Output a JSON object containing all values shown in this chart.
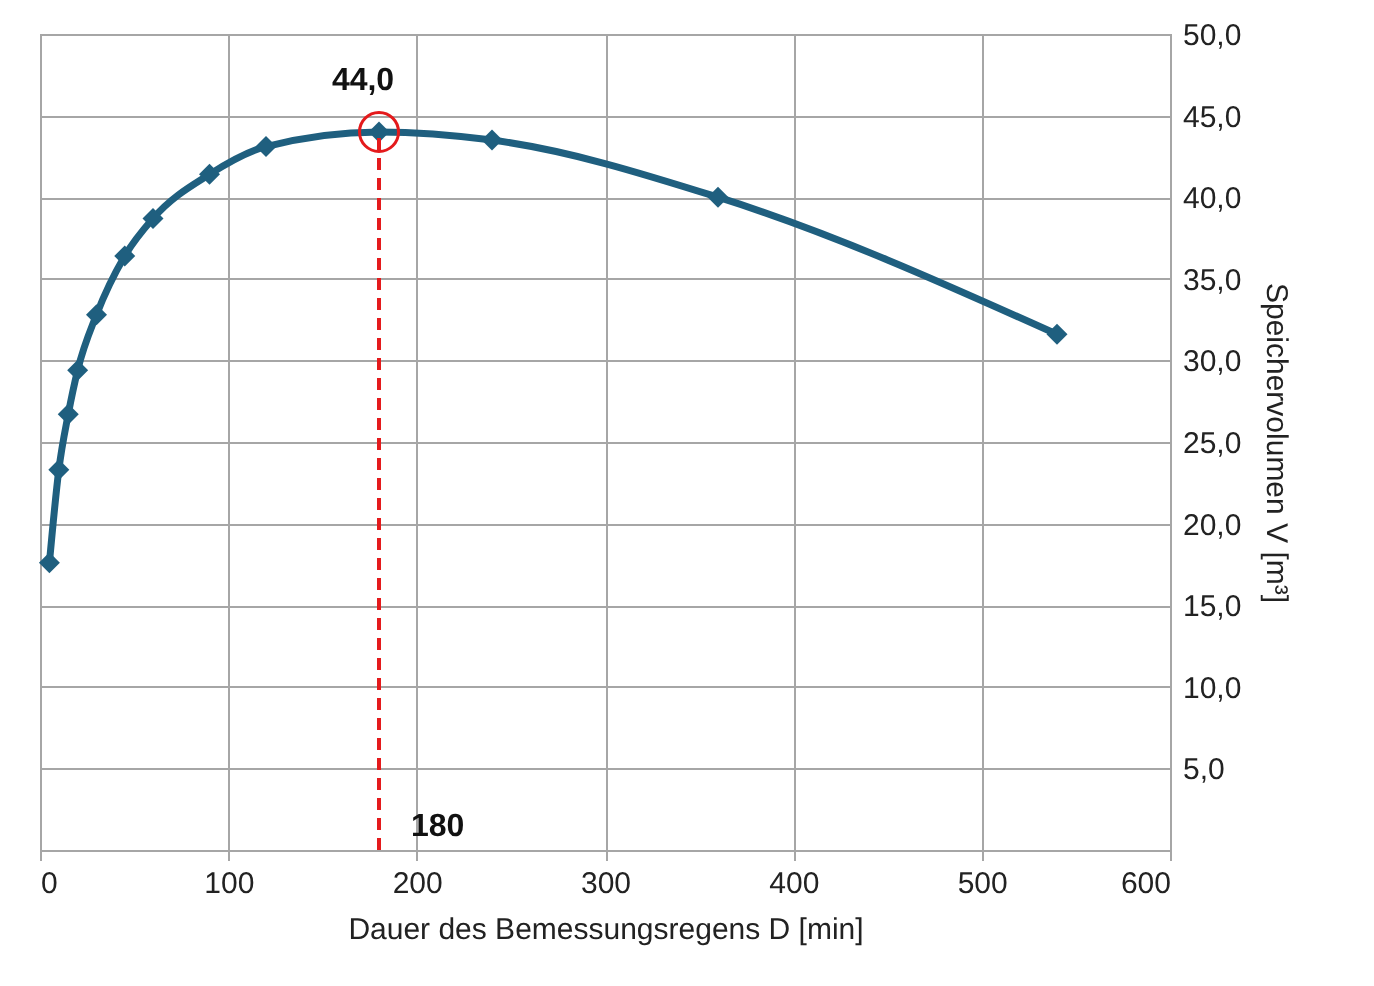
{
  "chart_data": {
    "type": "line",
    "xlabel": "Dauer des Bemessungsregens  D [min]",
    "ylabel": "Speichervolumen V [m³]",
    "x": [
      5,
      10,
      15,
      20,
      30,
      45,
      60,
      90,
      120,
      180,
      240,
      360,
      540
    ],
    "series": [
      {
        "color": "#1f5f7f",
        "values": [
          17.6,
          23.3,
          26.7,
          29.4,
          32.8,
          36.4,
          38.7,
          41.4,
          43.1,
          44.0,
          43.5,
          40.0,
          31.6
        ]
      }
    ],
    "xlim": [
      0,
      600
    ],
    "xticks": [
      0,
      100,
      200,
      300,
      400,
      500,
      600
    ],
    "ylim": [
      0,
      50
    ],
    "yticks": [
      {
        "value": 0,
        "label": null
      },
      {
        "value": 5,
        "label": "5,0"
      },
      {
        "value": 10,
        "label": "10,0"
      },
      {
        "value": 15,
        "label": "15,0"
      },
      {
        "value": 20,
        "label": "20,0"
      },
      {
        "value": 25,
        "label": "25,0"
      },
      {
        "value": 30,
        "label": "30,0"
      },
      {
        "value": 35,
        "label": "35,0"
      },
      {
        "value": 40,
        "label": "40,0"
      },
      {
        "value": 45,
        "label": "45,0"
      },
      {
        "value": 50,
        "label": "50,0"
      }
    ],
    "grid": true,
    "marker": "diamond",
    "line_style": "solid",
    "ref_lines": [
      {
        "axis": "x",
        "value": 180,
        "label": "180",
        "color": "#e41a1c",
        "line_style": "dashed"
      }
    ],
    "annotations": [
      {
        "text": "44,0",
        "x": 180,
        "y": 44.0
      }
    ]
  }
}
